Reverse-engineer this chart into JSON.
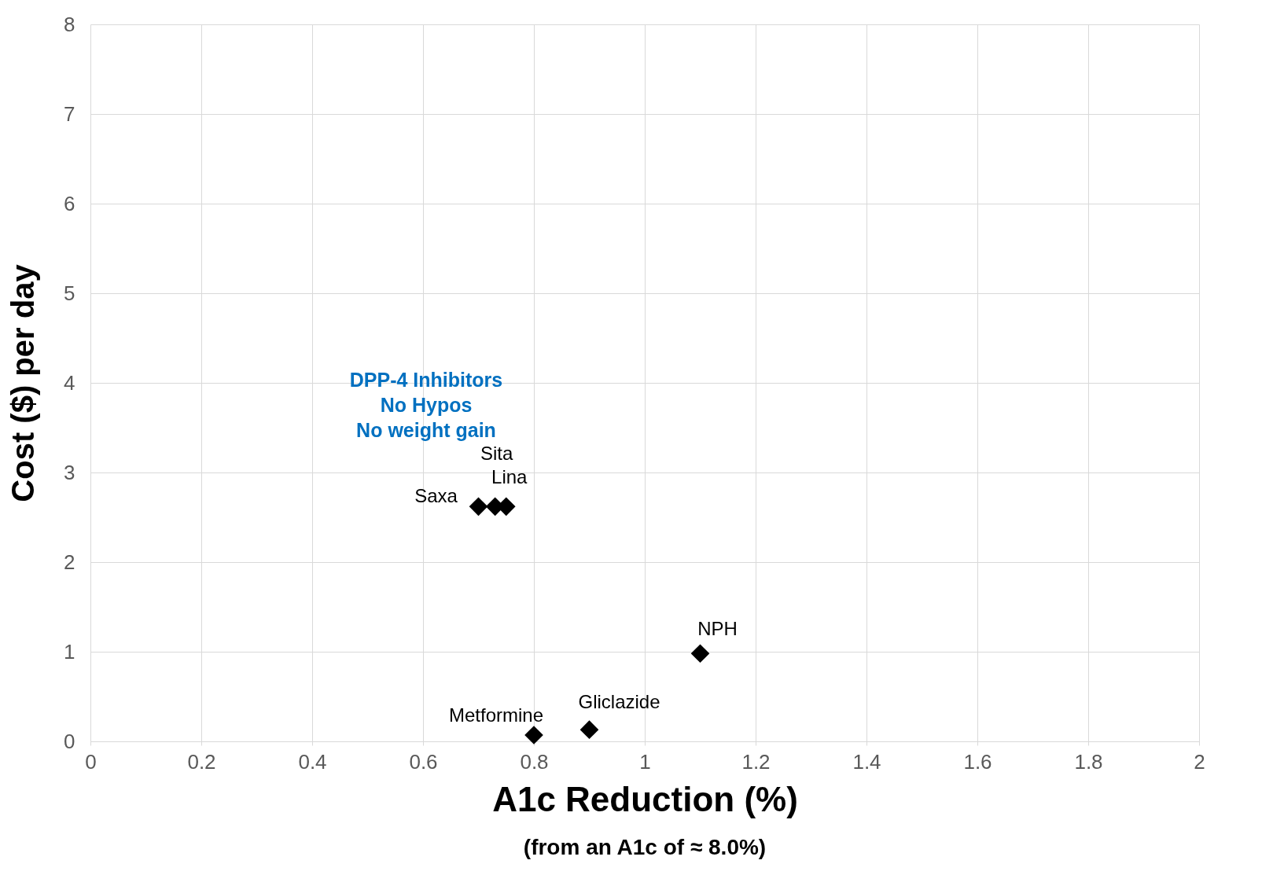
{
  "chart_data": {
    "type": "scatter",
    "xlabel": "A1c Reduction (%)",
    "subtitle": "(from an A1c of ≈ 8.0%)",
    "ylabel": "Cost ($) per day",
    "xlim": [
      0,
      2
    ],
    "xticks": [
      0,
      0.2,
      0.4,
      0.6,
      0.8,
      1,
      1.2,
      1.4,
      1.6,
      1.8,
      2
    ],
    "ylim": [
      0,
      8
    ],
    "yticks": [
      0,
      1,
      2,
      3,
      4,
      5,
      6,
      7,
      8
    ],
    "grid": true,
    "marker": "diamond",
    "annotations": [
      "DPP-4 Inhibitors",
      "No Hypos",
      "No weight gain"
    ],
    "series": [
      {
        "name": "Saxa",
        "color": "#000000",
        "x": [
          0.7
        ],
        "values": [
          2.62
        ]
      },
      {
        "name": "Sita",
        "color": "#000000",
        "x": [
          0.73
        ],
        "values": [
          2.62
        ]
      },
      {
        "name": "Lina",
        "color": "#000000",
        "x": [
          0.75
        ],
        "values": [
          2.62
        ]
      },
      {
        "name": "NPH",
        "color": "#000000",
        "x": [
          1.1
        ],
        "values": [
          0.98
        ]
      },
      {
        "name": "Gliclazide",
        "color": "#000000",
        "x": [
          0.9
        ],
        "values": [
          0.13
        ]
      },
      {
        "name": "Metformine",
        "color": "#000000",
        "x": [
          0.8
        ],
        "values": [
          0.07
        ]
      }
    ]
  }
}
